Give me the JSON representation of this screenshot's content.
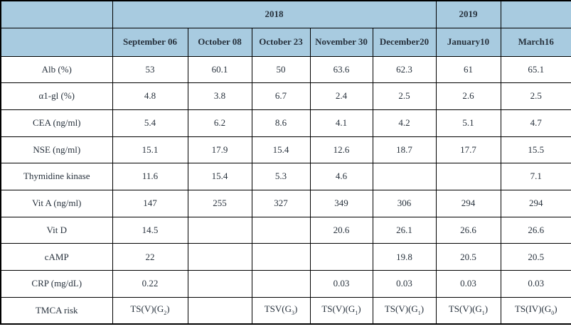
{
  "table": {
    "years": [
      "2018",
      "2019"
    ],
    "date_headers": [
      "",
      "September 06",
      "October 08",
      "October 23",
      "November 30",
      "December20",
      "January10",
      "March16"
    ],
    "rows": [
      {
        "label": "Alb (%)",
        "values": [
          "53",
          "60.1",
          "50",
          "63.6",
          "62.3",
          "61",
          "65.1"
        ]
      },
      {
        "label": "α1-gl (%)",
        "values": [
          "4.8",
          "3.8",
          "6.7",
          "2.4",
          "2.5",
          "2.6",
          "2.5"
        ]
      },
      {
        "label": "CEA (ng/ml)",
        "values": [
          "5.4",
          "6.2",
          "8.6",
          "4.1",
          "4.2",
          "5.1",
          "4.7"
        ]
      },
      {
        "label": "NSE (ng/ml)",
        "values": [
          "15.1",
          "17.9",
          "15.4",
          "12.6",
          "18.7",
          "17.7",
          "15.5"
        ]
      },
      {
        "label": "Thymidine kinase",
        "values": [
          "11.6",
          "15.4",
          "5.3",
          "4.6",
          "",
          "",
          "7.1"
        ]
      },
      {
        "label": "Vit A (ng/ml)",
        "values": [
          "147",
          "255",
          "327",
          "349",
          "306",
          "294",
          "294"
        ]
      },
      {
        "label": "Vit D",
        "values": [
          "14.5",
          "",
          "",
          "20.6",
          "26.1",
          "26.6",
          "26.6"
        ]
      },
      {
        "label": "cAMP",
        "values": [
          "22",
          "",
          "",
          "",
          "19.8",
          "20.5",
          "20.5"
        ]
      },
      {
        "label": "CRP (mg/dL)",
        "values": [
          "0.22",
          "",
          "",
          "0.03",
          "0.03",
          "0.03",
          "0.03"
        ]
      },
      {
        "label": "TMCA risk",
        "values": [
          {
            "pre": "TS(V)(G",
            "sub": "2",
            "post": ")"
          },
          "",
          {
            "pre": "TSV(G",
            "sub": "3",
            "post": ")"
          },
          {
            "pre": "TS(V)(G",
            "sub": "1",
            "post": ")"
          },
          {
            "pre": "TS(V)(G",
            "sub": "1",
            "post": ")"
          },
          {
            "pre": "TS(V)(G",
            "sub": "1",
            "post": ")"
          },
          {
            "pre": "TS(IV)(G",
            "sub": "0",
            "post": ")"
          }
        ]
      }
    ]
  },
  "colors": {
    "header_bg": "#a8cbe0",
    "border": "#000000",
    "text": "#27313c"
  }
}
